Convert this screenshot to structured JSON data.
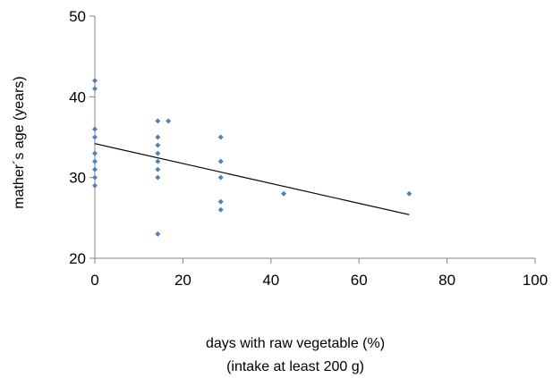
{
  "chart_data": {
    "type": "scatter",
    "title": "",
    "xlabel": [
      "days with raw vegetable (%)",
      "(intake at least 200 g)"
    ],
    "ylabel": "mather´s age (years)",
    "xlim": [
      0,
      100
    ],
    "ylim": [
      20,
      50
    ],
    "xticks": [
      0,
      20,
      40,
      60,
      80,
      100
    ],
    "yticks": [
      20,
      30,
      40,
      50
    ],
    "grid": false,
    "legend": "none",
    "marker_color": "#4f81bd",
    "trendline_color": "#000000",
    "points": [
      {
        "x": 0,
        "y": 42
      },
      {
        "x": 0,
        "y": 41
      },
      {
        "x": 0,
        "y": 36
      },
      {
        "x": 0,
        "y": 35
      },
      {
        "x": 0,
        "y": 33
      },
      {
        "x": 0,
        "y": 32
      },
      {
        "x": 0,
        "y": 31
      },
      {
        "x": 0,
        "y": 30
      },
      {
        "x": 0,
        "y": 29
      },
      {
        "x": 14.3,
        "y": 37
      },
      {
        "x": 14.3,
        "y": 35
      },
      {
        "x": 14.3,
        "y": 34
      },
      {
        "x": 14.3,
        "y": 33
      },
      {
        "x": 14.3,
        "y": 32
      },
      {
        "x": 14.3,
        "y": 31
      },
      {
        "x": 14.3,
        "y": 30
      },
      {
        "x": 14.3,
        "y": 23
      },
      {
        "x": 16.7,
        "y": 37
      },
      {
        "x": 28.6,
        "y": 35
      },
      {
        "x": 28.6,
        "y": 32
      },
      {
        "x": 28.6,
        "y": 30
      },
      {
        "x": 28.6,
        "y": 27
      },
      {
        "x": 28.6,
        "y": 26
      },
      {
        "x": 42.9,
        "y": 28
      },
      {
        "x": 71.4,
        "y": 28
      }
    ],
    "trendline": {
      "x": [
        0,
        71.4
      ],
      "y": [
        34.2,
        25.4
      ]
    }
  }
}
